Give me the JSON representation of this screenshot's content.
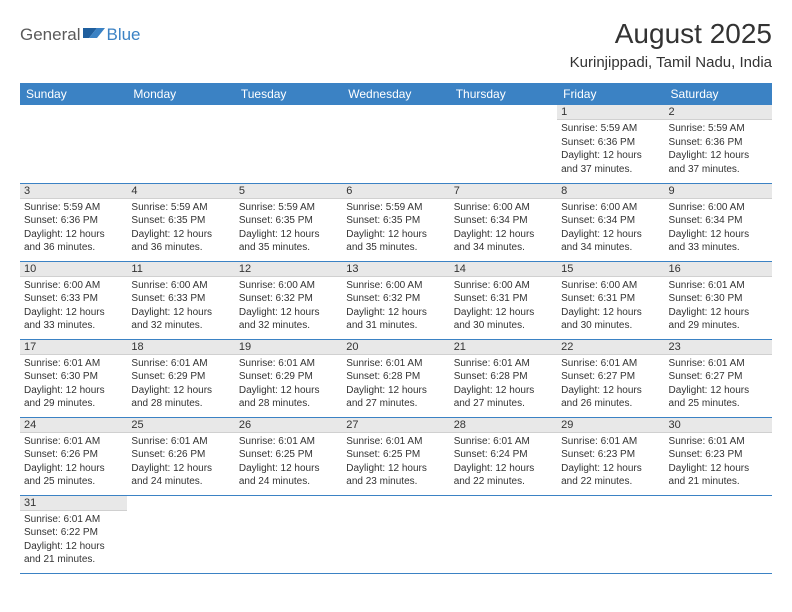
{
  "logo": {
    "part1": "General",
    "part2": "Blue"
  },
  "title": "August 2025",
  "location": "Kurinjippadi, Tamil Nadu, India",
  "colors": {
    "header_bg": "#3b82c4",
    "header_fg": "#ffffff",
    "daynum_bg": "#e8e8e8",
    "row_border": "#3b82c4",
    "text": "#333333",
    "logo_gray": "#5a5a5a",
    "logo_blue": "#3b82c4"
  },
  "weekdays": [
    "Sunday",
    "Monday",
    "Tuesday",
    "Wednesday",
    "Thursday",
    "Friday",
    "Saturday"
  ],
  "weeks": [
    [
      null,
      null,
      null,
      null,
      null,
      {
        "d": "1",
        "sr": "5:59 AM",
        "ss": "6:36 PM",
        "dl": "12 hours and 37 minutes."
      },
      {
        "d": "2",
        "sr": "5:59 AM",
        "ss": "6:36 PM",
        "dl": "12 hours and 37 minutes."
      }
    ],
    [
      {
        "d": "3",
        "sr": "5:59 AM",
        "ss": "6:36 PM",
        "dl": "12 hours and 36 minutes."
      },
      {
        "d": "4",
        "sr": "5:59 AM",
        "ss": "6:35 PM",
        "dl": "12 hours and 36 minutes."
      },
      {
        "d": "5",
        "sr": "5:59 AM",
        "ss": "6:35 PM",
        "dl": "12 hours and 35 minutes."
      },
      {
        "d": "6",
        "sr": "5:59 AM",
        "ss": "6:35 PM",
        "dl": "12 hours and 35 minutes."
      },
      {
        "d": "7",
        "sr": "6:00 AM",
        "ss": "6:34 PM",
        "dl": "12 hours and 34 minutes."
      },
      {
        "d": "8",
        "sr": "6:00 AM",
        "ss": "6:34 PM",
        "dl": "12 hours and 34 minutes."
      },
      {
        "d": "9",
        "sr": "6:00 AM",
        "ss": "6:34 PM",
        "dl": "12 hours and 33 minutes."
      }
    ],
    [
      {
        "d": "10",
        "sr": "6:00 AM",
        "ss": "6:33 PM",
        "dl": "12 hours and 33 minutes."
      },
      {
        "d": "11",
        "sr": "6:00 AM",
        "ss": "6:33 PM",
        "dl": "12 hours and 32 minutes."
      },
      {
        "d": "12",
        "sr": "6:00 AM",
        "ss": "6:32 PM",
        "dl": "12 hours and 32 minutes."
      },
      {
        "d": "13",
        "sr": "6:00 AM",
        "ss": "6:32 PM",
        "dl": "12 hours and 31 minutes."
      },
      {
        "d": "14",
        "sr": "6:00 AM",
        "ss": "6:31 PM",
        "dl": "12 hours and 30 minutes."
      },
      {
        "d": "15",
        "sr": "6:00 AM",
        "ss": "6:31 PM",
        "dl": "12 hours and 30 minutes."
      },
      {
        "d": "16",
        "sr": "6:01 AM",
        "ss": "6:30 PM",
        "dl": "12 hours and 29 minutes."
      }
    ],
    [
      {
        "d": "17",
        "sr": "6:01 AM",
        "ss": "6:30 PM",
        "dl": "12 hours and 29 minutes."
      },
      {
        "d": "18",
        "sr": "6:01 AM",
        "ss": "6:29 PM",
        "dl": "12 hours and 28 minutes."
      },
      {
        "d": "19",
        "sr": "6:01 AM",
        "ss": "6:29 PM",
        "dl": "12 hours and 28 minutes."
      },
      {
        "d": "20",
        "sr": "6:01 AM",
        "ss": "6:28 PM",
        "dl": "12 hours and 27 minutes."
      },
      {
        "d": "21",
        "sr": "6:01 AM",
        "ss": "6:28 PM",
        "dl": "12 hours and 27 minutes."
      },
      {
        "d": "22",
        "sr": "6:01 AM",
        "ss": "6:27 PM",
        "dl": "12 hours and 26 minutes."
      },
      {
        "d": "23",
        "sr": "6:01 AM",
        "ss": "6:27 PM",
        "dl": "12 hours and 25 minutes."
      }
    ],
    [
      {
        "d": "24",
        "sr": "6:01 AM",
        "ss": "6:26 PM",
        "dl": "12 hours and 25 minutes."
      },
      {
        "d": "25",
        "sr": "6:01 AM",
        "ss": "6:26 PM",
        "dl": "12 hours and 24 minutes."
      },
      {
        "d": "26",
        "sr": "6:01 AM",
        "ss": "6:25 PM",
        "dl": "12 hours and 24 minutes."
      },
      {
        "d": "27",
        "sr": "6:01 AM",
        "ss": "6:25 PM",
        "dl": "12 hours and 23 minutes."
      },
      {
        "d": "28",
        "sr": "6:01 AM",
        "ss": "6:24 PM",
        "dl": "12 hours and 22 minutes."
      },
      {
        "d": "29",
        "sr": "6:01 AM",
        "ss": "6:23 PM",
        "dl": "12 hours and 22 minutes."
      },
      {
        "d": "30",
        "sr": "6:01 AM",
        "ss": "6:23 PM",
        "dl": "12 hours and 21 minutes."
      }
    ],
    [
      {
        "d": "31",
        "sr": "6:01 AM",
        "ss": "6:22 PM",
        "dl": "12 hours and 21 minutes."
      },
      null,
      null,
      null,
      null,
      null,
      null
    ]
  ],
  "labels": {
    "sunrise": "Sunrise:",
    "sunset": "Sunset:",
    "daylight": "Daylight:"
  }
}
